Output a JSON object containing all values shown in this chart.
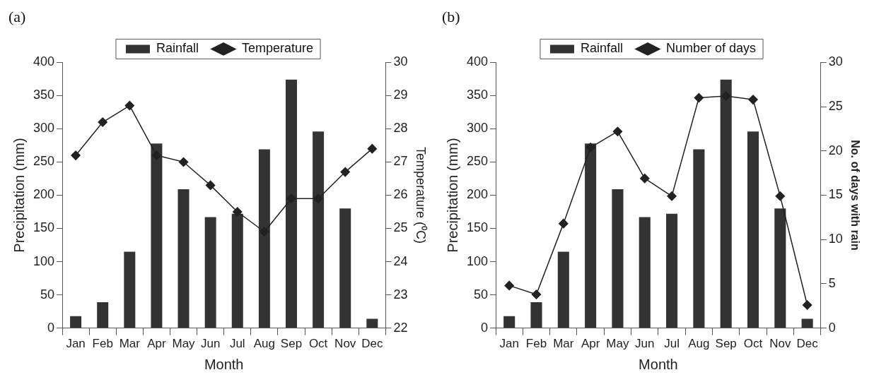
{
  "chart_data": [
    {
      "type": "bar",
      "title": "(a)",
      "xlabel": "Month",
      "ylabel": "Precipitation (mm)",
      "y2label": "Temperature (⁰C)",
      "categories": [
        "Jan",
        "Feb",
        "Mar",
        "Apr",
        "May",
        "Jun",
        "Jul",
        "Aug",
        "Sep",
        "Oct",
        "Nov",
        "Dec"
      ],
      "series": [
        {
          "name": "Rainfall",
          "color": "#333333",
          "values": [
            18,
            39,
            115,
            278,
            209,
            167,
            172,
            269,
            374,
            296,
            180,
            14
          ]
        },
        {
          "name": "Temperature",
          "type": "line",
          "axis": "y2",
          "color": "#222222",
          "values": [
            27.2,
            28.2,
            28.7,
            27.2,
            27.0,
            26.3,
            25.5,
            24.9,
            25.9,
            25.9,
            26.7,
            27.4
          ]
        }
      ],
      "ylim": [
        0,
        400
      ],
      "yticks": [
        0,
        50,
        100,
        150,
        200,
        250,
        300,
        350,
        400
      ],
      "y2lim": [
        22,
        30
      ],
      "y2ticks": [
        22,
        23,
        24,
        25,
        26,
        27,
        28,
        29,
        30
      ],
      "legend": "top",
      "grid": false,
      "marker": "diamond",
      "line_style": "solid"
    },
    {
      "type": "bar",
      "title": "(b)",
      "xlabel": "Month",
      "ylabel": "Precipitation (mm)",
      "y2label": "No. of days with rain",
      "categories": [
        "Jan",
        "Feb",
        "Mar",
        "Apr",
        "May",
        "Jun",
        "Jul",
        "Aug",
        "Sep",
        "Oct",
        "Nov",
        "Dec"
      ],
      "series": [
        {
          "name": "Rainfall",
          "color": "#333333",
          "values": [
            18,
            39,
            115,
            278,
            209,
            167,
            172,
            269,
            374,
            296,
            180,
            14
          ]
        },
        {
          "name": "Number of days",
          "type": "line",
          "axis": "y2",
          "color": "#222222",
          "values": [
            4.8,
            3.8,
            11.8,
            20.4,
            22.2,
            16.9,
            14.9,
            26.0,
            26.2,
            25.8,
            14.9,
            2.6
          ]
        }
      ],
      "ylim": [
        0,
        400
      ],
      "yticks": [
        0,
        50,
        100,
        150,
        200,
        250,
        300,
        350,
        400
      ],
      "y2lim": [
        0,
        30
      ],
      "y2ticks": [
        0,
        5,
        10,
        15,
        20,
        25,
        30
      ],
      "legend": "top",
      "grid": false,
      "marker": "diamond",
      "line_style": "solid"
    }
  ]
}
